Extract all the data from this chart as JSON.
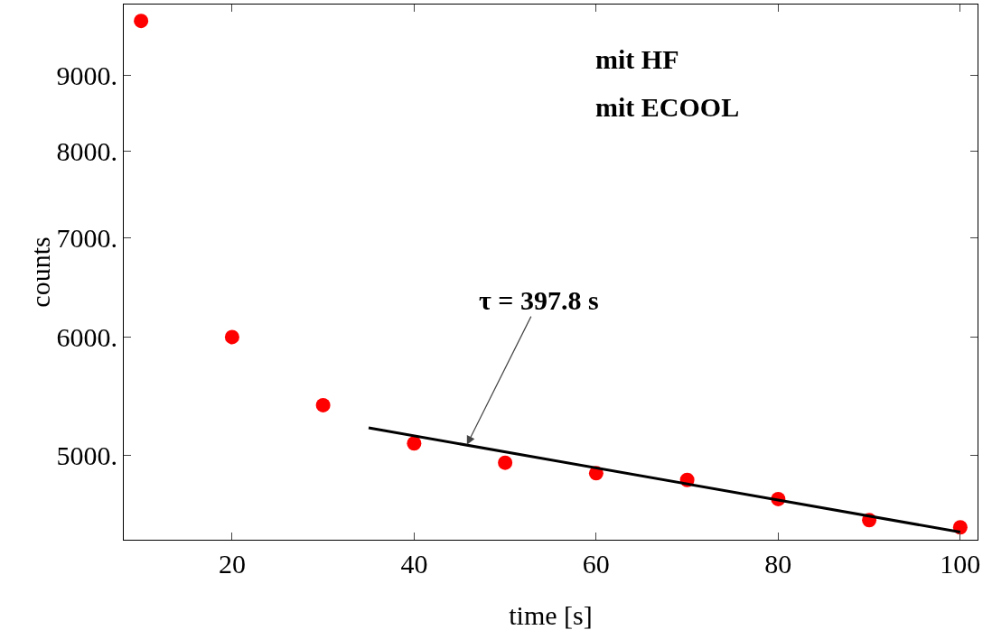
{
  "chart_data": {
    "type": "scatter",
    "xlabel": "time [s]",
    "ylabel": "counts",
    "log": "y",
    "grid": false,
    "legend": false,
    "marker": "circle",
    "x": [
      10,
      20,
      30,
      40,
      50,
      60,
      70,
      80,
      90,
      100
    ],
    "series": [
      {
        "color": "#ff0000",
        "values": [
          9785,
          6000,
          5400,
          5090,
          4940,
          4860,
          4810,
          4670,
          4520,
          4470
        ]
      },
      {
        "type": "line",
        "color": "#000000",
        "marker": "none",
        "line_style": "solid",
        "x": [
          35,
          100
        ],
        "values": [
          5214,
          4437
        ]
      }
    ],
    "xlim": [
      8.1,
      101.9
    ],
    "xticks": [
      20,
      40,
      60,
      80,
      100
    ],
    "ylim": [
      4385,
      10036
    ],
    "yticks": [
      {
        "value": 5000,
        "label": "5000."
      },
      {
        "value": 6000,
        "label": "6000."
      },
      {
        "value": 7000,
        "label": "7000."
      },
      {
        "value": 8000,
        "label": "8000."
      },
      {
        "value": 9000,
        "label": "9000."
      }
    ],
    "annotations": [
      "mit HF",
      "mit ECOOL",
      {
        "text": "τ = 397.8 s",
        "x": 45.8,
        "y": 5080
      }
    ]
  }
}
